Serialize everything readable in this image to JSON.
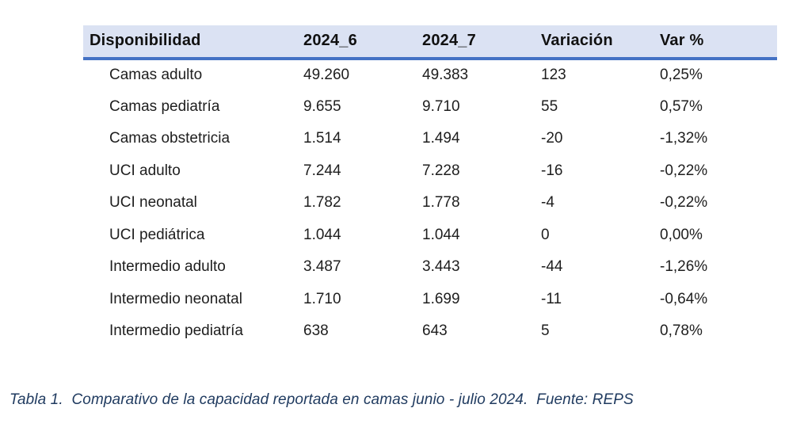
{
  "table": {
    "columns": [
      "Disponibilidad",
      "2024_6",
      "2024_7",
      "Variación",
      "Var %"
    ],
    "rows": [
      {
        "cells": [
          "Camas adulto",
          "49.260",
          "49.383",
          "123",
          "0,25%"
        ]
      },
      {
        "cells": [
          "Camas pediatría",
          "9.655",
          "9.710",
          "55",
          "0,57%"
        ]
      },
      {
        "cells": [
          "Camas obstetricia",
          "1.514",
          "1.494",
          "-20",
          "-1,32%"
        ]
      },
      {
        "cells": [
          "UCI adulto",
          "7.244",
          "7.228",
          "-16",
          "-0,22%"
        ]
      },
      {
        "cells": [
          "UCI neonatal",
          "1.782",
          "1.778",
          "-4",
          "-0,22%"
        ]
      },
      {
        "cells": [
          "UCI pediátrica",
          "1.044",
          "1.044",
          "0",
          "0,00%"
        ]
      },
      {
        "cells": [
          "Intermedio adulto",
          "3.487",
          "3.443",
          "-44",
          "-1,26%"
        ]
      },
      {
        "cells": [
          "Intermedio neonatal",
          "1.710",
          "1.699",
          "-11",
          "-0,64%"
        ]
      },
      {
        "cells": [
          "Intermedio pediatría",
          "638",
          "643",
          "5",
          "0,78%"
        ]
      }
    ]
  },
  "caption": "Tabla 1.  Comparativo de la capacidad reportada en camas junio - julio 2024.  Fuente: REPS",
  "colors": {
    "header_background": "#dbe2f3",
    "header_rule": "#4472c4",
    "body_text": "#1e1e1e",
    "caption_text": "#1f3a5f"
  }
}
